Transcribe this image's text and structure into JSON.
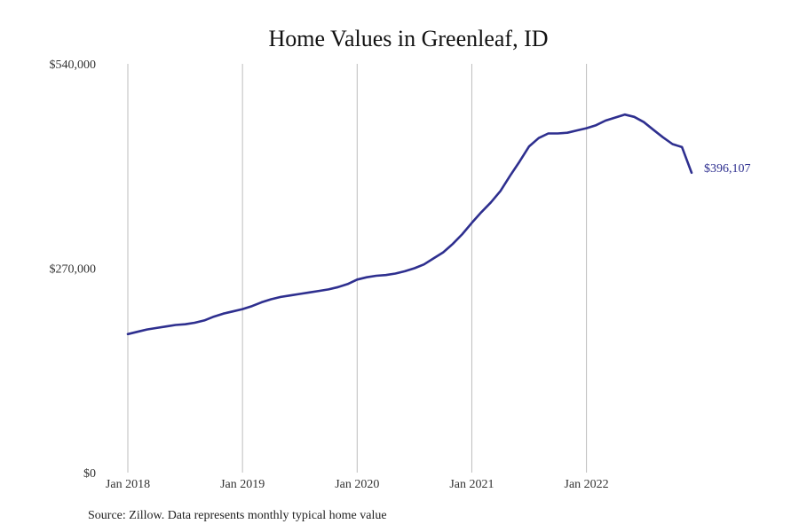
{
  "chart_data": {
    "type": "line",
    "title": "Home Values in Greenleaf, ID",
    "xlabel": "",
    "ylabel": "",
    "x_tick_labels": [
      "Jan 2018",
      "Jan 2019",
      "Jan 2020",
      "Jan 2021",
      "Jan 2022"
    ],
    "y_tick_labels": [
      "$540,000",
      "$270,000",
      "$0"
    ],
    "ylim": [
      0,
      540000
    ],
    "x_range": [
      "2018-01",
      "2022-12"
    ],
    "grid": "vertical at each January",
    "line_color": "#2e2f8f",
    "end_label": "$396,107",
    "series": [
      {
        "x": [
          "2018-01",
          "2018-02",
          "2018-03",
          "2018-04",
          "2018-05",
          "2018-06",
          "2018-07",
          "2018-08",
          "2018-09",
          "2018-10",
          "2018-11",
          "2018-12",
          "2019-01",
          "2019-02",
          "2019-03",
          "2019-04",
          "2019-05",
          "2019-06",
          "2019-07",
          "2019-08",
          "2019-09",
          "2019-10",
          "2019-11",
          "2019-12",
          "2020-01",
          "2020-02",
          "2020-03",
          "2020-04",
          "2020-05",
          "2020-06",
          "2020-07",
          "2020-08",
          "2020-09",
          "2020-10",
          "2020-11",
          "2020-12",
          "2021-01",
          "2021-02",
          "2021-03",
          "2021-04",
          "2021-05",
          "2021-06",
          "2021-07",
          "2021-08",
          "2021-09",
          "2021-10",
          "2021-11",
          "2021-12",
          "2022-01",
          "2022-02",
          "2022-03",
          "2022-04",
          "2022-05",
          "2022-06",
          "2022-07",
          "2022-08",
          "2022-09",
          "2022-10",
          "2022-11",
          "2022-12"
        ],
        "values": [
          183000,
          186000,
          189000,
          191000,
          193000,
          195000,
          196000,
          198000,
          201000,
          206000,
          210000,
          213000,
          216000,
          220000,
          225000,
          229000,
          232000,
          234000,
          236000,
          238000,
          240000,
          242000,
          245000,
          249000,
          255000,
          258000,
          260000,
          261000,
          263000,
          266000,
          270000,
          275000,
          283000,
          291000,
          302000,
          315000,
          330000,
          344000,
          357000,
          372000,
          392000,
          411000,
          431000,
          442000,
          448000,
          448000,
          449000,
          452000,
          455000,
          459000,
          465000,
          469000,
          473000,
          470000,
          463000,
          453000,
          443000,
          434000,
          430000,
          396107
        ]
      }
    ]
  },
  "source": "Source: Zillow. Data represents monthly typical home value"
}
